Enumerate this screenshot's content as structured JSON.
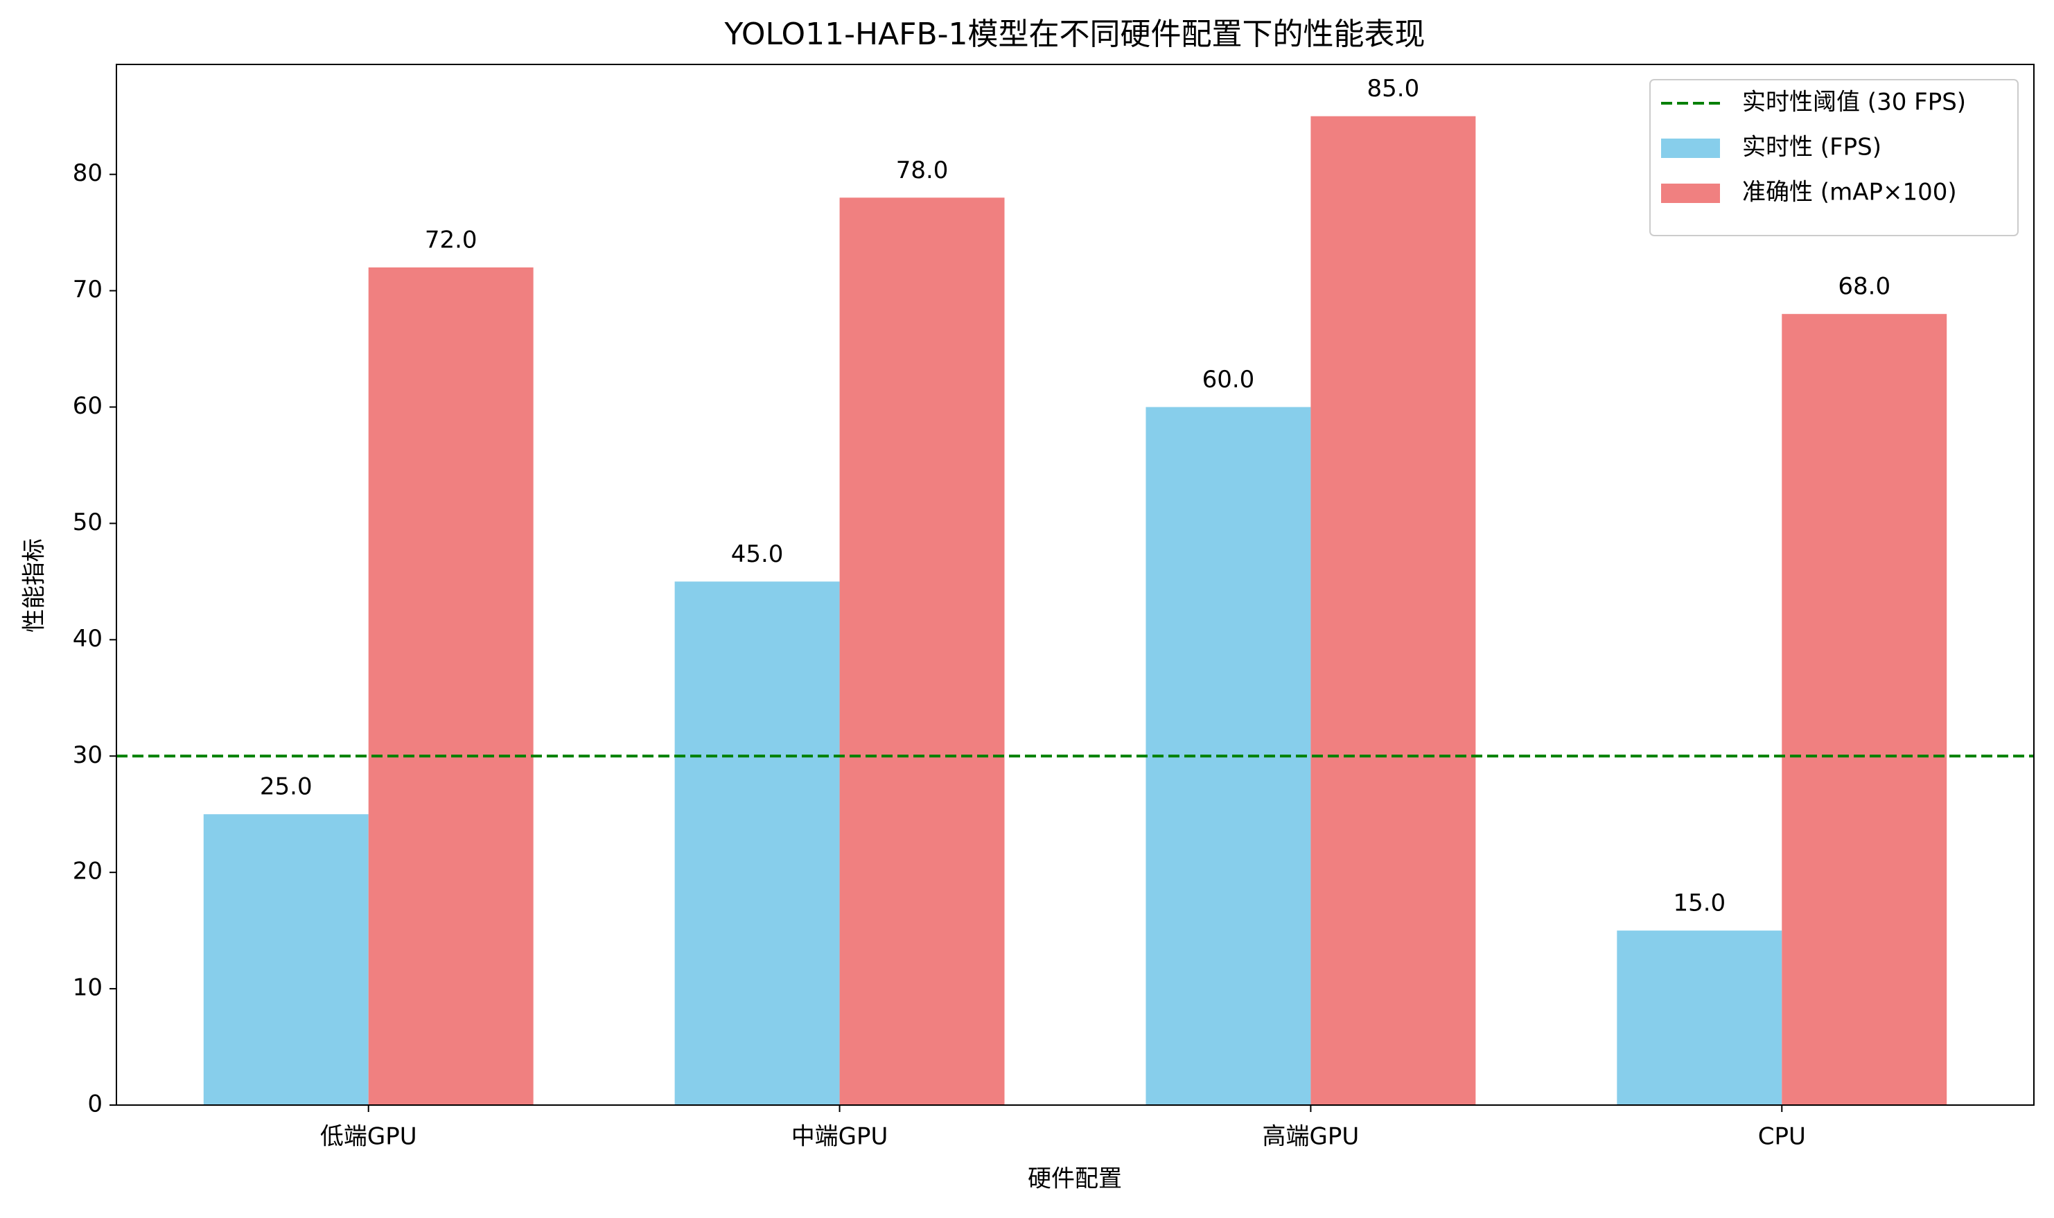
{
  "chart_data": {
    "type": "bar",
    "title": "YOLO11-HAFB-1模型在不同硬件配置下的性能表现",
    "x_label": "硬件配置",
    "y_label": "性能指标",
    "categories": [
      "低端GPU",
      "中端GPU",
      "高端GPU",
      "CPU"
    ],
    "series": [
      {
        "name": "实时性 (FPS)",
        "color": "#87ceeb",
        "values": [
          25,
          45,
          60,
          15
        ],
        "value_labels": [
          "25.0",
          "45.0",
          "60.0",
          "15.0"
        ]
      },
      {
        "name": "准确性 (mAP×100)",
        "color": "#f08080",
        "values": [
          72,
          78,
          85,
          68
        ],
        "value_labels": [
          "72.0",
          "78.0",
          "85.0",
          "68.0"
        ]
      }
    ],
    "threshold": {
      "name": "实时性阈值 (30 FPS)",
      "value": 30,
      "color": "#008000"
    },
    "ylim": [
      0,
      89.45
    ],
    "yticks": [
      0,
      10,
      20,
      30,
      40,
      50,
      60,
      70,
      80
    ],
    "grid": false,
    "legend": "upper-right"
  }
}
